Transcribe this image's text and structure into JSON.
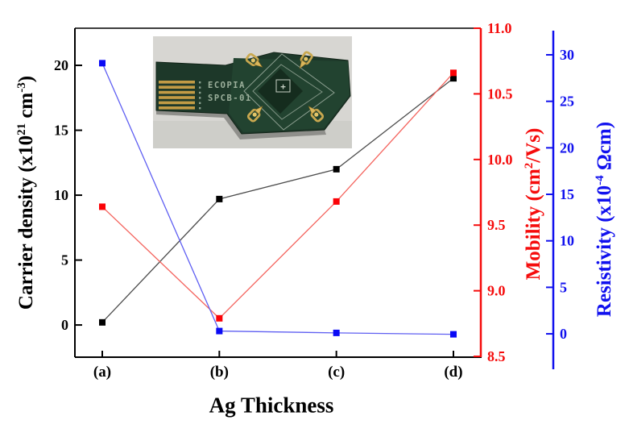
{
  "chart_data": {
    "type": "line",
    "title": "",
    "x_axis": {
      "label": "Ag Thickness",
      "categories": [
        "(a)",
        "(b)",
        "(c)",
        "(d)"
      ]
    },
    "axes": {
      "left": {
        "label": "Carrier density (x10^21 cm^-3)",
        "label_parts": {
          "p1": "Carrier density (x10",
          "s1": "21",
          "p2": " cm",
          "s2": "-3",
          "p3": ")"
        },
        "color": "#000000",
        "ticks": [
          "20",
          "15",
          "10",
          "5",
          "0"
        ],
        "tick_values": [
          20,
          15,
          10,
          5,
          0
        ],
        "range": [
          -2.48,
          22.86
        ]
      },
      "mobility": {
        "label": "Mobility (cm^2/Vs)",
        "label_parts": {
          "p1": "Mobility (cm",
          "s1": "2",
          "p2": "/Vs)"
        },
        "color": "#f50c0c",
        "ticks": [
          "11.0",
          "10.5",
          "10.0",
          "9.5",
          "9.0",
          "8.5"
        ],
        "tick_values": [
          11.0,
          10.5,
          10.0,
          9.5,
          9.0,
          8.5
        ],
        "range": [
          8.494,
          11.0
        ]
      },
      "resistivity": {
        "label": "Resistivity (x10^-4 Ωcm)",
        "label_parts": {
          "p1": "Resistivity (x10",
          "s1": "-4",
          "p2": " Ωcm)"
        },
        "color": "#1111ee",
        "ticks": [
          "30",
          "25",
          "20",
          "15",
          "10",
          "5",
          "0"
        ],
        "tick_values": [
          30,
          25,
          20,
          15,
          10,
          5,
          0
        ],
        "range": [
          -2.51,
          32.86
        ]
      }
    },
    "series": [
      {
        "name": "Carrier density",
        "axis": "left",
        "marker_color": "#000000",
        "line_color": "#4d4d4d",
        "values": [
          0.2,
          9.7,
          12.0,
          19.0
        ]
      },
      {
        "name": "Mobility",
        "axis": "mobility",
        "marker_color": "#fb0207",
        "line_color": "#f4655f",
        "values": [
          9.64,
          8.79,
          9.68,
          10.66
        ]
      },
      {
        "name": "Resistivity",
        "axis": "resistivity",
        "marker_color": "#0a0af5",
        "line_color": "#5f5ff2",
        "values": [
          29.1,
          0.3,
          0.1,
          -0.05
        ]
      }
    ],
    "grid": false,
    "legend": "none"
  },
  "inset": {
    "board_text_line1": "ECOPIA",
    "board_text_line2": "SPCB-01",
    "center_mark": "+"
  }
}
